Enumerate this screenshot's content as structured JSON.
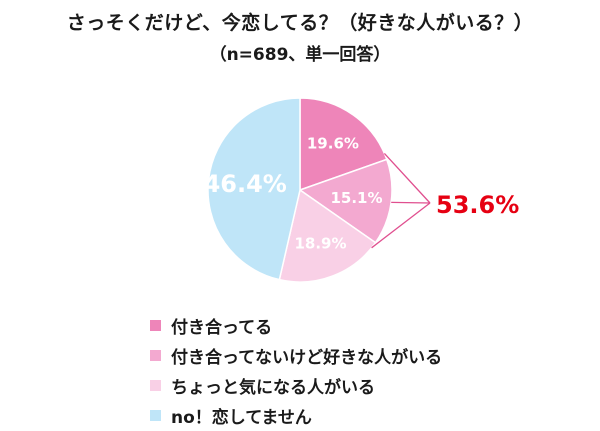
{
  "chart_data": {
    "type": "pie",
    "title": "さっそくだけど、今恋してる？（好きな人がいる？）",
    "subtitle": "（n=689、単一回答）",
    "slices": [
      {
        "name": "付き合ってる",
        "value": 19.6,
        "label": "19.6%",
        "color": "#ee85b9"
      },
      {
        "name": "付き合ってないけど好きな人がいる",
        "value": 15.1,
        "label": "15.1%",
        "color": "#f3a9d0"
      },
      {
        "name": "ちょっと気になる人がいる",
        "value": 18.9,
        "label": "18.9%",
        "color": "#f9d0e6"
      },
      {
        "name": "no！恋してません",
        "value": 46.4,
        "label": "46.4%",
        "color": "#bfe5f8"
      }
    ],
    "annotation": {
      "text": "53.6%",
      "color": "#e60012"
    },
    "legend_placement": "bottom"
  }
}
